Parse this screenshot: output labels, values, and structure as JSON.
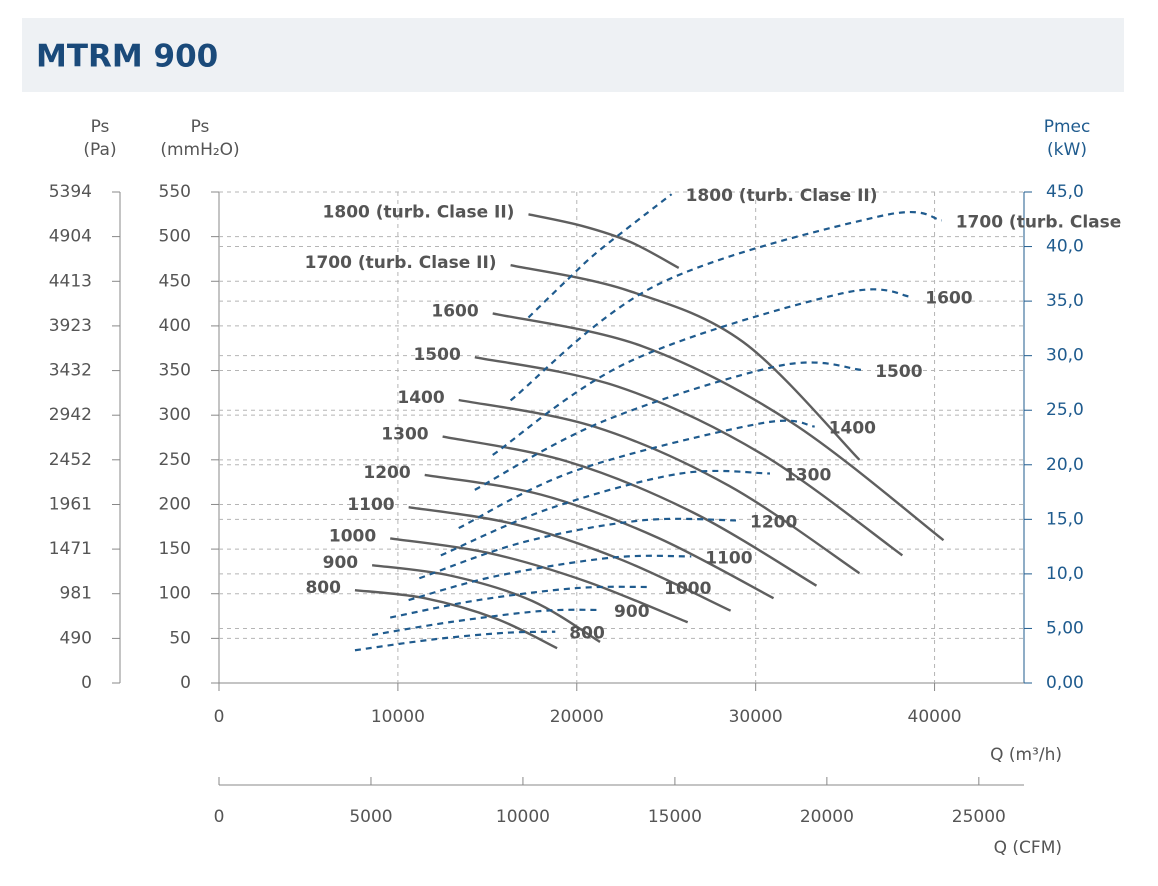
{
  "chart_data": {
    "type": "line",
    "title": "MTRM 900",
    "xlabel": "Q (m³/h)",
    "xlim": [
      0,
      45000
    ],
    "xticks": [
      0,
      10000,
      20000,
      30000,
      40000
    ],
    "x2label": "Q (CFM)",
    "x2lim": [
      0,
      26486
    ],
    "x2ticks": [
      0,
      5000,
      10000,
      15000,
      20000,
      25000
    ],
    "ylabel": [
      "Ps",
      "(mmH₂O)"
    ],
    "ylim": [
      0,
      550
    ],
    "yticks": [
      0,
      50,
      100,
      150,
      200,
      250,
      300,
      350,
      400,
      450,
      500,
      550
    ],
    "y_pa_label": [
      "Ps",
      "(Pa)"
    ],
    "y_pa_lim": [
      0,
      5394
    ],
    "y_pa_ticks": [
      0,
      490,
      981,
      1471,
      1961,
      2452,
      2942,
      3432,
      3923,
      4413,
      4904,
      5394
    ],
    "y2label": [
      "Pmec",
      "(kW)"
    ],
    "y2lim": [
      0,
      45
    ],
    "y2ticks": [
      {
        "value": 0,
        "label": "0,00"
      },
      {
        "value": 5,
        "label": "5,00"
      },
      {
        "value": 10,
        "label": "10,0"
      },
      {
        "value": 15,
        "label": "15,0"
      },
      {
        "value": 20,
        "label": "20,0"
      },
      {
        "value": 25,
        "label": "25,0"
      },
      {
        "value": 30,
        "label": "30,0"
      },
      {
        "value": 35,
        "label": "35,0"
      },
      {
        "value": 40,
        "label": "40,0"
      },
      {
        "value": 45,
        "label": "45,0"
      }
    ],
    "grid": true,
    "series": [
      {
        "name": "800",
        "color": "#5f5f5f",
        "x": [
          7600,
          11500,
          15500,
          18900
        ],
        "values": [
          104,
          95,
          72,
          39
        ]
      },
      {
        "name": "900",
        "color": "#5f5f5f",
        "x": [
          8560,
          13000,
          17500,
          21300
        ],
        "values": [
          132,
          120,
          92,
          46
        ]
      },
      {
        "name": "1000",
        "color": "#5f5f5f",
        "x": [
          9570,
          15000,
          20500,
          26200
        ],
        "values": [
          162,
          146,
          114,
          68
        ]
      },
      {
        "name": "1100",
        "color": "#5f5f5f",
        "x": [
          10600,
          16500,
          22500,
          28600
        ],
        "values": [
          197,
          178,
          138,
          81
        ]
      },
      {
        "name": "1200",
        "color": "#5f5f5f",
        "x": [
          11500,
          18000,
          24500,
          31000
        ],
        "values": [
          233,
          211,
          163,
          95
        ]
      },
      {
        "name": "1300",
        "color": "#5f5f5f",
        "x": [
          12500,
          19500,
          26500,
          33400
        ],
        "values": [
          276,
          248,
          191,
          109
        ]
      },
      {
        "name": "1400",
        "color": "#5f5f5f",
        "x": [
          13400,
          21000,
          28500,
          35800
        ],
        "values": [
          317,
          287,
          221,
          123
        ]
      },
      {
        "name": "1500",
        "color": "#5f5f5f",
        "x": [
          14300,
          22300,
          30300,
          38200
        ],
        "values": [
          365,
          332,
          257,
          143
        ]
      },
      {
        "name": "1600",
        "color": "#5f5f5f",
        "x": [
          15300,
          23700,
          32000,
          40500
        ],
        "values": [
          414,
          377,
          292,
          160
        ]
      },
      {
        "name": "1700 (turb. Clase II)",
        "color": "#5f5f5f",
        "x": [
          16300,
          22800,
          29300,
          35800
        ],
        "values": [
          468,
          440,
          382,
          250
        ]
      },
      {
        "name": "1800 (turb. Clase II)",
        "color": "#5f5f5f",
        "x": [
          17300,
          20300,
          23000,
          25700
        ],
        "values": [
          525,
          512,
          494,
          465
        ]
      },
      {
        "name": "800",
        "color": "#1f5b8e",
        "axis": "y2",
        "dashed": true,
        "x": [
          7600,
          12000,
          16000,
          18800
        ],
        "values": [
          3.0,
          4.0,
          4.6,
          4.7
        ]
      },
      {
        "name": "900",
        "color": "#1f5b8e",
        "axis": "y2",
        "dashed": true,
        "x": [
          8560,
          13000,
          18000,
          21300
        ],
        "values": [
          4.4,
          5.6,
          6.6,
          6.7
        ]
      },
      {
        "name": "1000",
        "color": "#1f5b8e",
        "axis": "y2",
        "dashed": true,
        "x": [
          9570,
          14500,
          20000,
          24100
        ],
        "values": [
          6.0,
          7.6,
          8.7,
          8.8
        ]
      },
      {
        "name": "1100",
        "color": "#1f5b8e",
        "axis": "y2",
        "dashed": true,
        "x": [
          10600,
          15500,
          22000,
          26400
        ],
        "values": [
          7.6,
          9.8,
          11.5,
          11.6
        ]
      },
      {
        "name": "1200",
        "color": "#1f5b8e",
        "axis": "y2",
        "dashed": true,
        "x": [
          11200,
          17000,
          23600,
          28900
        ],
        "values": [
          9.6,
          12.9,
          14.9,
          14.9
        ]
      },
      {
        "name": "1300",
        "color": "#1f5b8e",
        "axis": "y2",
        "dashed": true,
        "x": [
          12400,
          18500,
          25800,
          30800
        ],
        "values": [
          11.7,
          16.0,
          19.2,
          19.2
        ]
      },
      {
        "name": "1400",
        "color": "#1f5b8e",
        "axis": "y2",
        "dashed": true,
        "x": [
          13400,
          20000,
          30300,
          33300
        ],
        "values": [
          14.2,
          19.5,
          23.8,
          23.5
        ]
      },
      {
        "name": "1500",
        "color": "#1f5b8e",
        "axis": "y2",
        "dashed": true,
        "x": [
          14300,
          21500,
          31400,
          35900
        ],
        "values": [
          17.7,
          24.0,
          29.1,
          28.7
        ]
      },
      {
        "name": "1600",
        "color": "#1f5b8e",
        "axis": "y2",
        "dashed": true,
        "x": [
          15300,
          23000,
          34800,
          38700
        ],
        "values": [
          20.9,
          29.5,
          35.7,
          35.4
        ]
      },
      {
        "name": "1700 (turb. Clase",
        "color": "#1f5b8e",
        "axis": "y2",
        "dashed": true,
        "x": [
          16300,
          24500,
          37000,
          40400
        ],
        "values": [
          25.9,
          36.5,
          42.8,
          42.4
        ]
      },
      {
        "name": "1800 (turb. Clase II)",
        "color": "#1f5b8e",
        "axis": "y2",
        "dashed": true,
        "x": [
          17300,
          19500,
          21300,
          25300
        ],
        "values": [
          33.5,
          37.0,
          39.7,
          44.8
        ]
      }
    ]
  }
}
